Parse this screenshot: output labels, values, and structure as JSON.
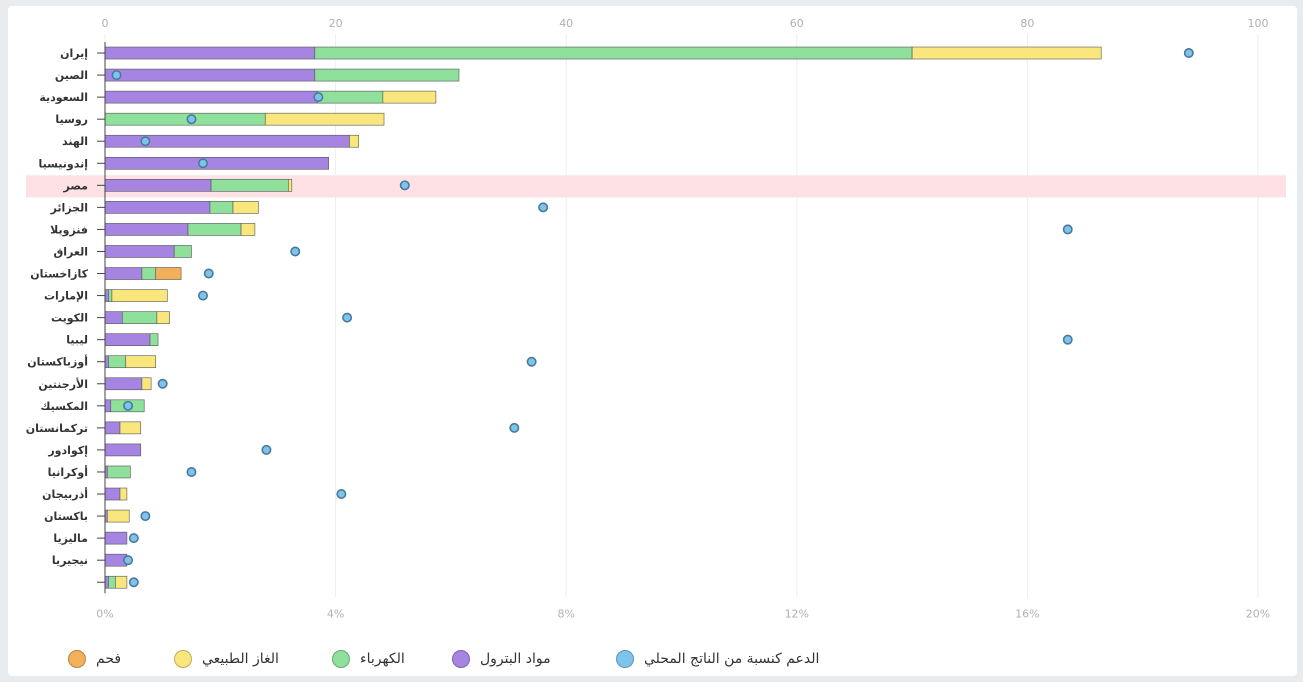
{
  "chart_data": {
    "type": "bar",
    "orientation": "horizontal",
    "stacked": true,
    "categories": [
      "إيران",
      "الصين",
      "السعودية",
      "روسيا",
      "الهند",
      "إندونيسيا",
      "مصر",
      "الجزائر",
      "فنزويلا",
      "العراق",
      "كازاخستان",
      "الإمارات",
      "الكويت",
      "ليبيا",
      "أوزباكستان",
      "الأرجنتين",
      "المكسيك",
      "تركمانستان",
      "إكوادور",
      "أوكرانيا",
      "أذربيجان",
      "باكستان",
      "ماليزيا",
      "نيجيريا",
      ""
    ],
    "highlight_category": "مصر",
    "series": [
      {
        "name": "مواد البترول",
        "color": "#a685e2",
        "values": [
          18.2,
          18.2,
          18.4,
          0,
          21.2,
          19.4,
          9.2,
          9.1,
          7.2,
          6.0,
          3.2,
          0.3,
          1.5,
          3.9,
          0.3,
          3.2,
          0.5,
          1.3,
          3.1,
          0.2,
          1.3,
          0.2,
          1.9,
          1.9,
          0.3
        ]
      },
      {
        "name": "الكهرباء",
        "color": "#8ee09a",
        "values": [
          51.8,
          12.5,
          5.7,
          13.9,
          0,
          0,
          6.7,
          2.0,
          4.6,
          1.5,
          1.2,
          0.3,
          3.0,
          0.7,
          1.5,
          0,
          2.9,
          0,
          0,
          2.0,
          0,
          0,
          0,
          0,
          0.6
        ]
      },
      {
        "name": "الغاز الطبيعي",
        "color": "#f9e77e",
        "values": [
          16.4,
          0,
          4.6,
          10.3,
          0.8,
          0,
          0.3,
          2.2,
          1.2,
          0,
          0,
          4.8,
          1.1,
          0,
          2.6,
          0.8,
          0,
          1.8,
          0,
          0,
          0.6,
          1.9,
          0,
          0,
          1.0
        ]
      },
      {
        "name": "فحم",
        "color": "#f3b05a",
        "values": [
          0,
          0,
          0,
          0,
          0,
          0,
          0,
          0,
          0,
          0,
          2.2,
          0,
          0,
          0,
          0,
          0,
          0,
          0,
          0,
          0,
          0,
          0,
          0,
          0,
          0
        ]
      }
    ],
    "dots": {
      "name": "الدعم كنسبة من الناتج المحلي",
      "color": "#7ec3ec",
      "values": [
        18.8,
        0.2,
        3.7,
        1.5,
        0.7,
        1.7,
        5.2,
        7.6,
        16.7,
        3.3,
        1.8,
        1.7,
        4.2,
        16.7,
        7.4,
        1.0,
        0.4,
        7.1,
        2.8,
        1.5,
        4.1,
        0.7,
        0.5,
        0.4,
        0.5
      ]
    },
    "xlim_top": [
      0,
      100
    ],
    "xticks_top": [
      "0",
      "20",
      "40",
      "60",
      "80",
      "100"
    ],
    "xlim_bottom": [
      0,
      20
    ],
    "xticks_bottom": [
      "0%",
      "4%",
      "8%",
      "12%",
      "16%",
      "20%"
    ],
    "grid": true,
    "legend_position": "bottom"
  }
}
